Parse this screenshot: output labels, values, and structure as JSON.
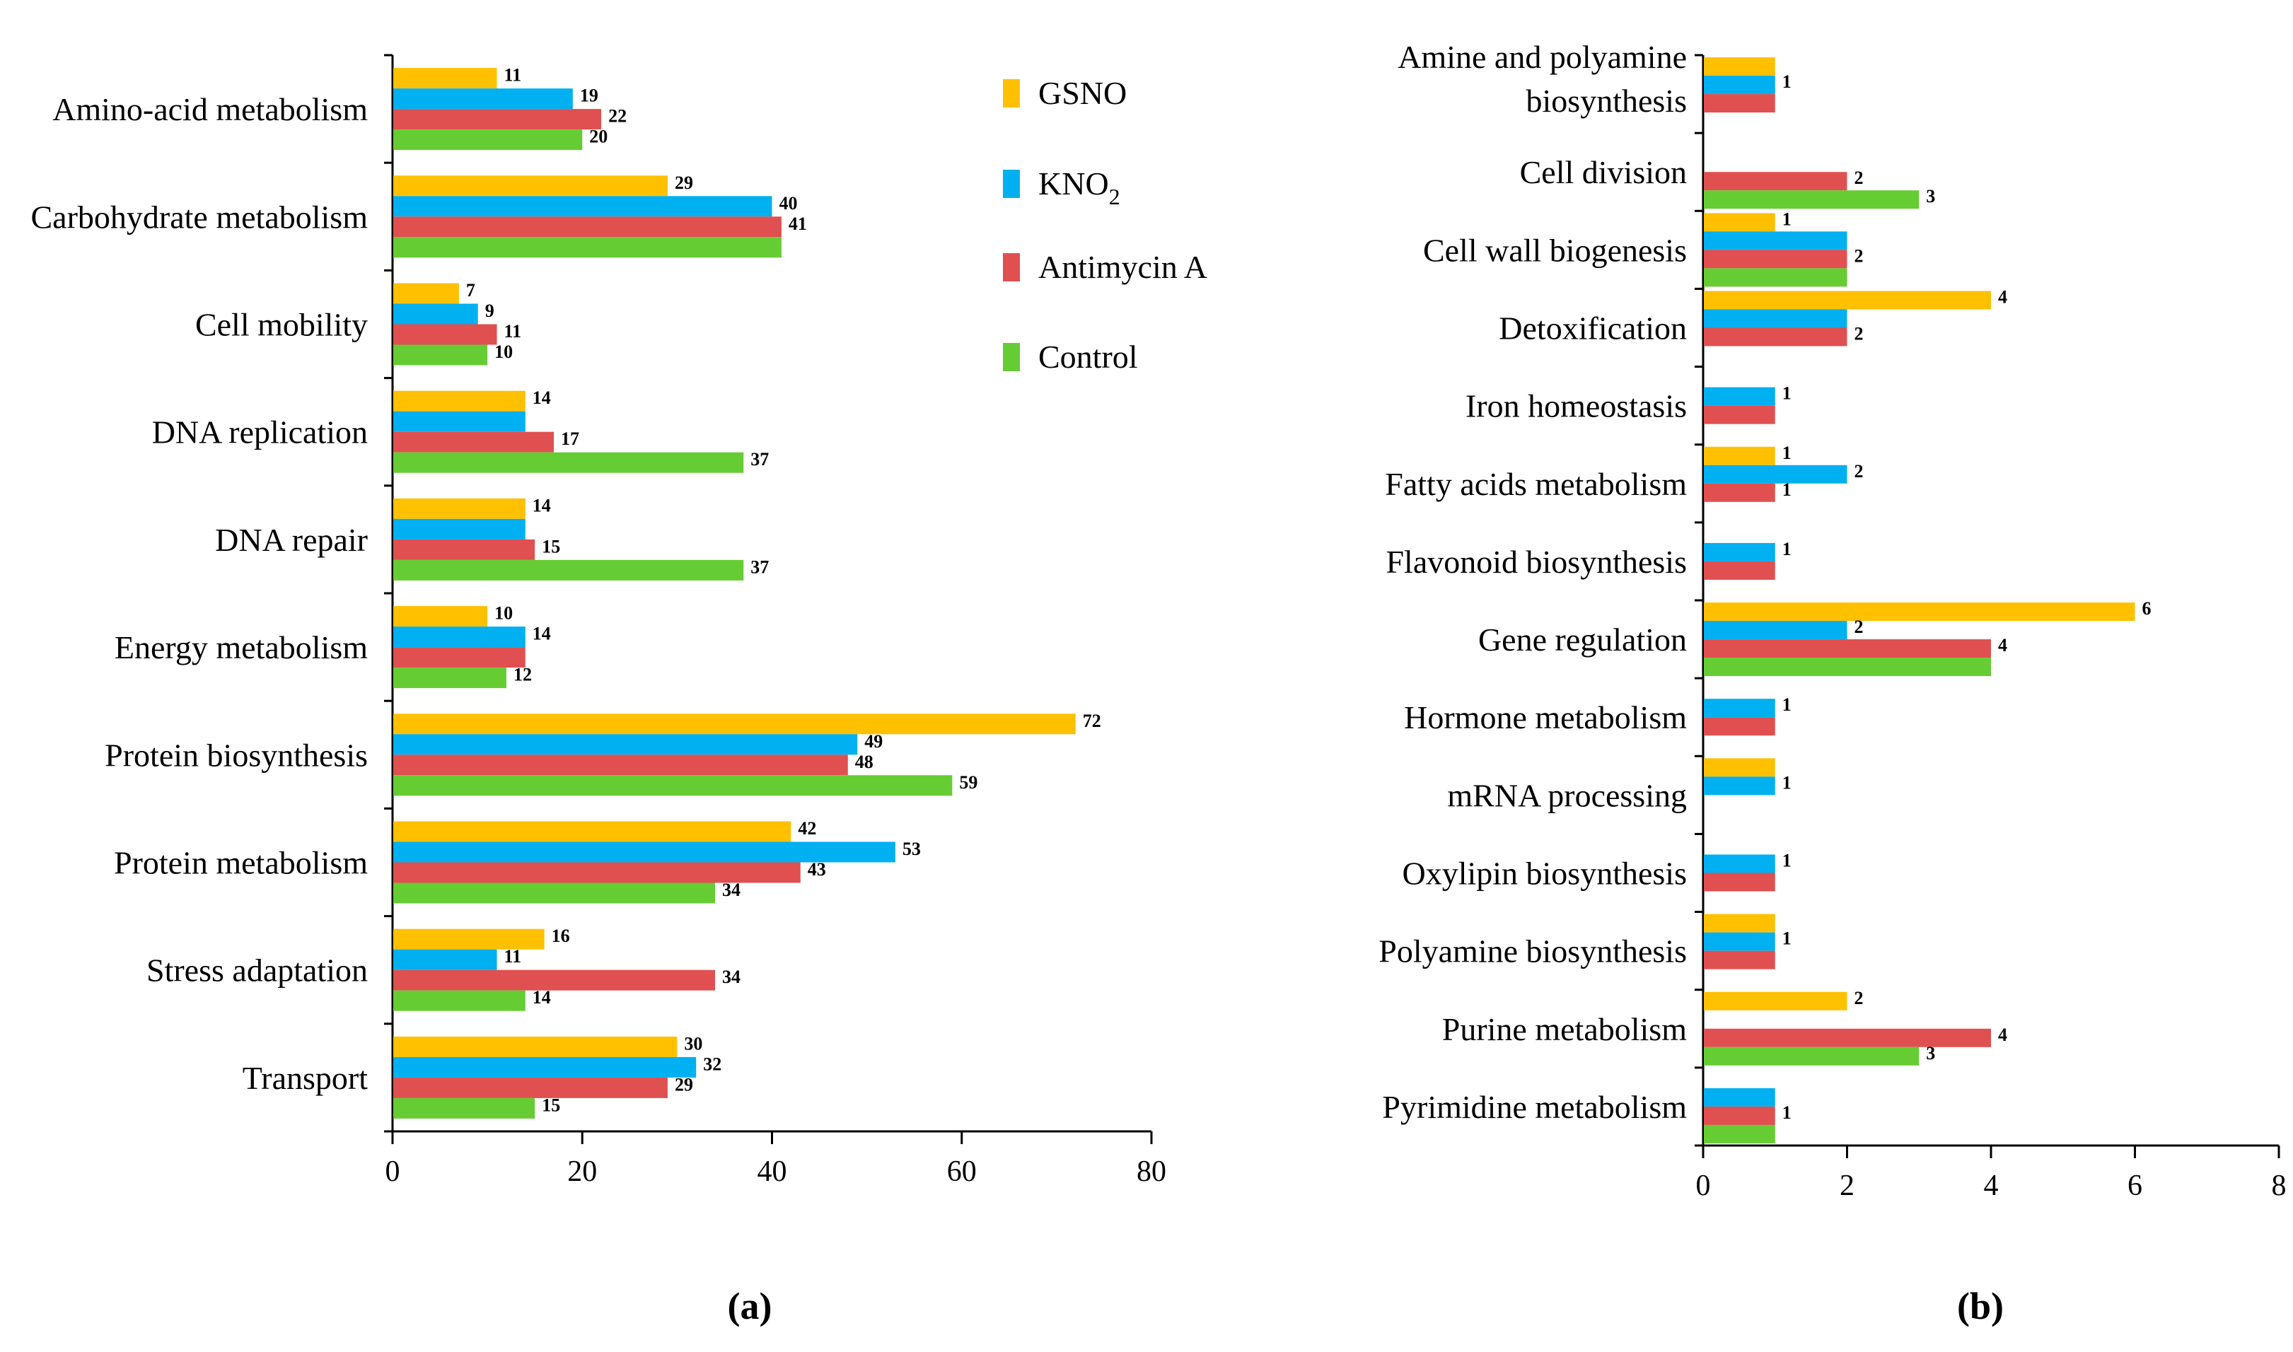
{
  "colors": {
    "GSNO": "#FFC000",
    "KNO2": "#00B0F0",
    "Antimycin A": "#E05050",
    "Control": "#66CC33"
  },
  "legend": {
    "items": [
      {
        "key": "GSNO",
        "label": "GSNO",
        "sub": ""
      },
      {
        "key": "KNO2",
        "label": "KNO",
        "sub": "2"
      },
      {
        "key": "Antimycin A",
        "label": "Antimycin A",
        "sub": ""
      },
      {
        "key": "Control",
        "label": "Control",
        "sub": ""
      }
    ]
  },
  "chart_data": [
    {
      "type": "bar",
      "orientation": "horizontal",
      "panel_label": "(a)",
      "title": "",
      "xlabel": "",
      "ylabel": "",
      "xlim": [
        0,
        80
      ],
      "xticks": [
        0,
        20,
        40,
        60,
        80
      ],
      "categories": [
        "Amino-acid metabolism",
        "Carbohydrate metabolism",
        "Cell mobility",
        "DNA replication",
        "DNA repair",
        "Energy metabolism",
        "Protein biosynthesis",
        "Protein metabolism",
        "Stress adaptation",
        "Transport"
      ],
      "series": [
        {
          "name": "GSNO",
          "values": [
            11,
            29,
            7,
            14,
            14,
            10,
            72,
            42,
            16,
            30
          ]
        },
        {
          "name": "KNO2",
          "values": [
            19,
            40,
            9,
            14,
            14,
            14,
            49,
            53,
            11,
            32
          ]
        },
        {
          "name": "Antimycin A",
          "values": [
            22,
            41,
            11,
            17,
            15,
            14,
            48,
            43,
            34,
            29
          ]
        },
        {
          "name": "Control",
          "values": [
            20,
            41,
            10,
            37,
            37,
            12,
            59,
            34,
            14,
            15
          ]
        }
      ],
      "data_labels": [
        {
          "cat": 0,
          "series": 0,
          "text": "11"
        },
        {
          "cat": 0,
          "series": 1,
          "text": "19"
        },
        {
          "cat": 0,
          "series": 2,
          "text": "22"
        },
        {
          "cat": 0,
          "series": 3,
          "text": "20"
        },
        {
          "cat": 1,
          "series": 0,
          "text": "29"
        },
        {
          "cat": 1,
          "series": 1,
          "text": "40"
        },
        {
          "cat": 1,
          "series": 2,
          "text": "41"
        },
        {
          "cat": 2,
          "series": 0,
          "text": "7"
        },
        {
          "cat": 2,
          "series": 1,
          "text": "9"
        },
        {
          "cat": 2,
          "series": 2,
          "text": "11"
        },
        {
          "cat": 2,
          "series": 3,
          "text": "10"
        },
        {
          "cat": 3,
          "series": 0,
          "text": "14"
        },
        {
          "cat": 3,
          "series": 2,
          "text": "17"
        },
        {
          "cat": 3,
          "series": 3,
          "text": "37"
        },
        {
          "cat": 4,
          "series": 0,
          "text": "14"
        },
        {
          "cat": 4,
          "series": 2,
          "text": "15"
        },
        {
          "cat": 4,
          "series": 3,
          "text": "37"
        },
        {
          "cat": 5,
          "series": 0,
          "text": "10"
        },
        {
          "cat": 5,
          "series": 1,
          "text": "14"
        },
        {
          "cat": 5,
          "series": 3,
          "text": "12"
        },
        {
          "cat": 6,
          "series": 0,
          "text": "72"
        },
        {
          "cat": 6,
          "series": 1,
          "text": "49"
        },
        {
          "cat": 6,
          "series": 2,
          "text": "48"
        },
        {
          "cat": 6,
          "series": 3,
          "text": "59"
        },
        {
          "cat": 7,
          "series": 0,
          "text": "42"
        },
        {
          "cat": 7,
          "series": 1,
          "text": "53"
        },
        {
          "cat": 7,
          "series": 2,
          "text": "43"
        },
        {
          "cat": 7,
          "series": 3,
          "text": "34"
        },
        {
          "cat": 8,
          "series": 0,
          "text": "16"
        },
        {
          "cat": 8,
          "series": 1,
          "text": "11"
        },
        {
          "cat": 8,
          "series": 2,
          "text": "34"
        },
        {
          "cat": 8,
          "series": 3,
          "text": "14"
        },
        {
          "cat": 9,
          "series": 0,
          "text": "30"
        },
        {
          "cat": 9,
          "series": 1,
          "text": "32"
        },
        {
          "cat": 9,
          "series": 2,
          "text": "29"
        },
        {
          "cat": 9,
          "series": 3,
          "text": "15"
        }
      ]
    },
    {
      "type": "bar",
      "orientation": "horizontal",
      "panel_label": "(b)",
      "title": "",
      "xlabel": "",
      "ylabel": "",
      "xlim": [
        0,
        8
      ],
      "xticks": [
        0,
        2,
        4,
        6,
        8
      ],
      "categories": [
        "Amine and polyamine biosynthesis",
        "Cell division",
        "Cell wall biogenesis",
        "Detoxification",
        "Iron homeostasis",
        "Fatty acids metabolism",
        "Flavonoid biosynthesis",
        "Gene regulation",
        "Hormone metabolism",
        "mRNA processing",
        "Oxylipin biosynthesis",
        "Polyamine biosynthesis",
        "Purine metabolism",
        "Pyrimidine metabolism"
      ],
      "category_lines": [
        [
          "Amine and polyamine",
          "biosynthesis"
        ],
        [
          "Cell division"
        ],
        [
          "Cell wall biogenesis"
        ],
        [
          "Detoxification"
        ],
        [
          "Iron homeostasis"
        ],
        [
          "Fatty acids metabolism"
        ],
        [
          "Flavonoid biosynthesis"
        ],
        [
          "Gene regulation"
        ],
        [
          "Hormone metabolism"
        ],
        [
          "mRNA processing"
        ],
        [
          "Oxylipin biosynthesis"
        ],
        [
          "Polyamine biosynthesis"
        ],
        [
          "Purine metabolism"
        ],
        [
          "Pyrimidine metabolism"
        ]
      ],
      "series": [
        {
          "name": "GSNO",
          "values": [
            1,
            0,
            1,
            4,
            0,
            1,
            0,
            6,
            0,
            1,
            0,
            1,
            2,
            0
          ]
        },
        {
          "name": "KNO2",
          "values": [
            1,
            0,
            2,
            2,
            1,
            2,
            1,
            2,
            1,
            1,
            1,
            1,
            0,
            1
          ]
        },
        {
          "name": "Antimycin A",
          "values": [
            1,
            2,
            2,
            2,
            1,
            1,
            1,
            4,
            1,
            0,
            1,
            1,
            4,
            1
          ]
        },
        {
          "name": "Control",
          "values": [
            0,
            3,
            2,
            0,
            0,
            0,
            0,
            4,
            0,
            0,
            0,
            0,
            3,
            1
          ]
        }
      ],
      "data_labels": [
        {
          "cat": 0,
          "series": 1,
          "text": "1"
        },
        {
          "cat": 1,
          "series": 2,
          "text": "2"
        },
        {
          "cat": 1,
          "series": 3,
          "text": "3"
        },
        {
          "cat": 2,
          "series": 0,
          "text": "1"
        },
        {
          "cat": 2,
          "series": 2,
          "text": "2"
        },
        {
          "cat": 3,
          "series": 0,
          "text": "4"
        },
        {
          "cat": 3,
          "series": 2,
          "text": "2"
        },
        {
          "cat": 4,
          "series": 1,
          "text": "1"
        },
        {
          "cat": 5,
          "series": 0,
          "text": "1"
        },
        {
          "cat": 5,
          "series": 1,
          "text": "2"
        },
        {
          "cat": 5,
          "series": 2,
          "text": "1"
        },
        {
          "cat": 6,
          "series": 1,
          "text": "1"
        },
        {
          "cat": 7,
          "series": 0,
          "text": "6"
        },
        {
          "cat": 7,
          "series": 1,
          "text": "2"
        },
        {
          "cat": 7,
          "series": 2,
          "text": "4"
        },
        {
          "cat": 8,
          "series": 1,
          "text": "1"
        },
        {
          "cat": 9,
          "series": 1,
          "text": "1"
        },
        {
          "cat": 10,
          "series": 1,
          "text": "1"
        },
        {
          "cat": 11,
          "series": 1,
          "text": "1"
        },
        {
          "cat": 12,
          "series": 0,
          "text": "2"
        },
        {
          "cat": 12,
          "series": 2,
          "text": "4"
        },
        {
          "cat": 12,
          "series": 3,
          "text": "3"
        },
        {
          "cat": 13,
          "series": 2,
          "text": "1"
        }
      ]
    }
  ]
}
